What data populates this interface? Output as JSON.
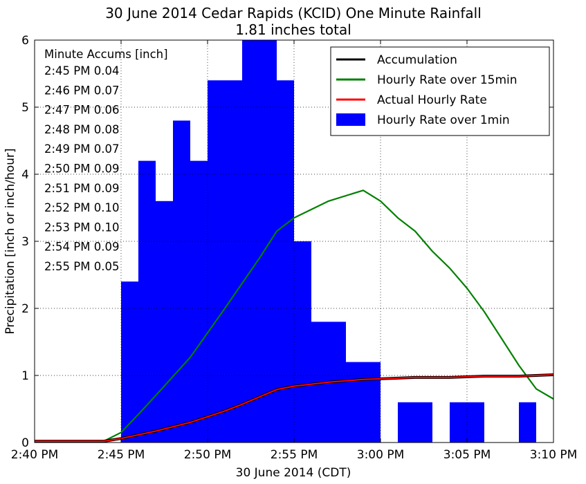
{
  "chart_data": {
    "type": "bar+line",
    "title": "30 June 2014 Cedar Rapids (KCID) One Minute Rainfall",
    "subtitle": "1.81 inches total",
    "xlabel": "30 June 2014 (CDT)",
    "ylabel": "Precipitation [inch or inch/hour]",
    "ylim": [
      0,
      6
    ],
    "xlim": [
      "2:40 PM",
      "3:10 PM"
    ],
    "x_minutes_range": [
      0,
      30
    ],
    "x_ticks": [
      "2:40 PM",
      "2:45 PM",
      "2:50 PM",
      "2:55 PM",
      "3:00 PM",
      "3:05 PM",
      "3:10 PM"
    ],
    "y_ticks": [
      "0",
      "1",
      "2",
      "3",
      "4",
      "5",
      "6"
    ],
    "grid": true,
    "legend_position": "top-right",
    "annotation": {
      "title": "Minute Accums [inch]",
      "lines": [
        "2:45 PM 0.04",
        "2:46 PM 0.07",
        "2:47 PM 0.06",
        "2:48 PM 0.08",
        "2:49 PM 0.07",
        "2:50 PM 0.09",
        "2:51 PM 0.09",
        "2:52 PM 0.10",
        "2:53 PM 0.10",
        "2:54 PM 0.09",
        "2:55 PM 0.05"
      ]
    },
    "series": [
      {
        "name": "Accumulation",
        "kind": "line",
        "color": "#000000",
        "points": [
          [
            0,
            0.02
          ],
          [
            4,
            0.02
          ],
          [
            5,
            0.06
          ],
          [
            7,
            0.17
          ],
          [
            9,
            0.3
          ],
          [
            11,
            0.47
          ],
          [
            12,
            0.57
          ],
          [
            14,
            0.79
          ],
          [
            15,
            0.84
          ],
          [
            17,
            0.9
          ],
          [
            19,
            0.94
          ],
          [
            21,
            0.96
          ],
          [
            22,
            0.97
          ],
          [
            24,
            0.97
          ],
          [
            26,
            0.99
          ],
          [
            28,
            0.99
          ],
          [
            29,
            1.0
          ],
          [
            30,
            1.01
          ]
        ]
      },
      {
        "name": "Hourly Rate over 15min",
        "kind": "line",
        "color": "#008000",
        "points": [
          [
            0,
            0.02
          ],
          [
            4,
            0.02
          ],
          [
            5,
            0.15
          ],
          [
            6,
            0.42
          ],
          [
            7,
            0.7
          ],
          [
            9,
            1.27
          ],
          [
            11,
            2.0
          ],
          [
            13,
            2.75
          ],
          [
            14,
            3.15
          ],
          [
            15,
            3.35
          ],
          [
            17,
            3.6
          ],
          [
            19,
            3.76
          ],
          [
            20,
            3.6
          ],
          [
            21,
            3.35
          ],
          [
            22,
            3.15
          ],
          [
            23,
            2.85
          ],
          [
            24,
            2.6
          ],
          [
            25,
            2.3
          ],
          [
            26,
            1.95
          ],
          [
            27,
            1.55
          ],
          [
            28,
            1.15
          ],
          [
            29,
            0.8
          ],
          [
            30,
            0.65
          ]
        ]
      },
      {
        "name": "Actual Hourly Rate",
        "kind": "line",
        "color": "#ff0000",
        "points": [
          [
            0,
            0.02
          ],
          [
            4,
            0.02
          ],
          [
            5,
            0.06
          ],
          [
            7,
            0.17
          ],
          [
            9,
            0.3
          ],
          [
            11,
            0.47
          ],
          [
            12,
            0.57
          ],
          [
            14,
            0.79
          ],
          [
            15,
            0.84
          ],
          [
            17,
            0.9
          ],
          [
            19,
            0.94
          ],
          [
            21,
            0.96
          ],
          [
            22,
            0.97
          ],
          [
            24,
            0.97
          ],
          [
            26,
            0.99
          ],
          [
            28,
            0.99
          ],
          [
            29,
            1.0
          ],
          [
            30,
            1.01
          ]
        ]
      },
      {
        "name": "Hourly Rate over 1min",
        "kind": "bar",
        "color": "#0000ff",
        "bars": [
          {
            "start": 5,
            "value": 2.4
          },
          {
            "start": 6,
            "value": 4.2
          },
          {
            "start": 7,
            "value": 3.6
          },
          {
            "start": 8,
            "value": 4.8
          },
          {
            "start": 9,
            "value": 4.2
          },
          {
            "start": 10,
            "value": 5.4
          },
          {
            "start": 11,
            "value": 5.4
          },
          {
            "start": 12,
            "value": 6.0
          },
          {
            "start": 13,
            "value": 6.0
          },
          {
            "start": 14,
            "value": 5.4
          },
          {
            "start": 15,
            "value": 3.0
          },
          {
            "start": 16,
            "value": 1.8
          },
          {
            "start": 17,
            "value": 1.8
          },
          {
            "start": 18,
            "value": 1.2
          },
          {
            "start": 19,
            "value": 1.2
          },
          {
            "start": 21,
            "value": 0.6
          },
          {
            "start": 22,
            "value": 0.6
          },
          {
            "start": 24,
            "value": 0.6
          },
          {
            "start": 25,
            "value": 0.6
          },
          {
            "start": 28,
            "value": 0.6
          }
        ]
      }
    ]
  }
}
